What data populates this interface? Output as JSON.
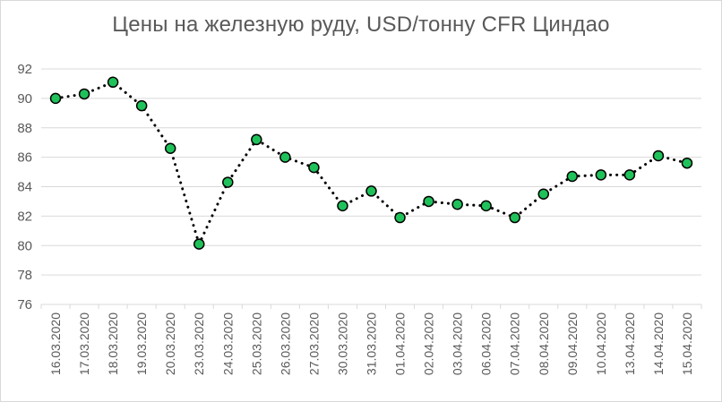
{
  "chart_data": {
    "type": "line",
    "title": "Цены на железную руду, USD/тонну CFR Циндао",
    "xlabel": "",
    "ylabel": "",
    "ylim": [
      76,
      92
    ],
    "yticks": [
      76,
      78,
      80,
      82,
      84,
      86,
      88,
      90,
      92
    ],
    "grid": true,
    "legend": "none",
    "categories": [
      "16.03.2020",
      "17.03.2020",
      "18.03.2020",
      "19.03.2020",
      "20.03.2020",
      "23.03.2020",
      "24.03.2020",
      "25.03.2020",
      "26.03.2020",
      "27.03.2020",
      "30.03.2020",
      "31.03.2020",
      "01.04.2020",
      "02.04.2020",
      "03.04.2020",
      "06.04.2020",
      "07.04.2020",
      "08.04.2020",
      "09.04.2020",
      "10.04.2020",
      "13.04.2020",
      "14.04.2020",
      "15.04.2020"
    ],
    "series": [
      {
        "values": [
          90.0,
          90.3,
          91.1,
          89.5,
          86.6,
          80.1,
          84.3,
          87.2,
          86.0,
          85.3,
          82.7,
          83.7,
          81.9,
          83.0,
          82.8,
          82.7,
          81.9,
          83.5,
          84.7,
          84.8,
          84.8,
          86.1,
          85.6
        ],
        "line_color": "#000000",
        "line_style": "dotted",
        "marker_fill": "#1fc25a",
        "marker_stroke": "#000000"
      }
    ],
    "colors": {
      "grid": "#d9d9d9",
      "text": "#595959"
    }
  }
}
